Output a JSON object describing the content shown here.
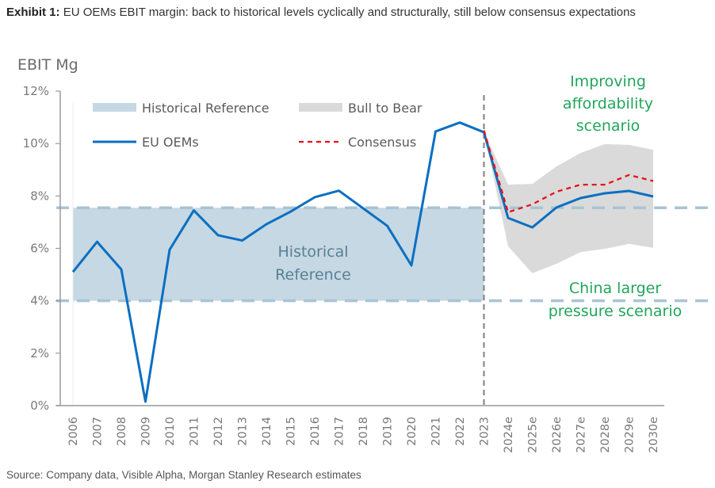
{
  "header": {
    "exhibit_label": "Exhibit 1:",
    "title": "EU OEMs EBIT margin: back to historical levels cyclically and structurally, still below consensus expectations"
  },
  "footer": {
    "source": "Source: Company data, Visible Alpha, Morgan Stanley Research estimates"
  },
  "colors": {
    "eu_oems": "#0a6fc2",
    "consensus": "#e8101b",
    "historical_band": "#c5d8e3",
    "bull_bear_band": "#dadada",
    "reference_lines": "#a9c4d4",
    "annotation_green": "#22a55b",
    "annotation_hist": "#5a7f96",
    "divider": "#7f7f7f"
  },
  "chart_data": {
    "type": "line",
    "title": "",
    "ylabel": "EBIT Mg",
    "xlabel": "",
    "ylim": [
      0,
      12
    ],
    "y_ticks": [
      0,
      2,
      4,
      6,
      8,
      10,
      12
    ],
    "y_tick_labels": [
      "0%",
      "2%",
      "4%",
      "6%",
      "8%",
      "10%",
      "12%"
    ],
    "categories": [
      "2006",
      "2007",
      "2008",
      "2009",
      "2010",
      "2011",
      "2012",
      "2013",
      "2014",
      "2015",
      "2016",
      "2017",
      "2018",
      "2019",
      "2020",
      "2021",
      "2022",
      "2023",
      "2024e",
      "2025e",
      "2026e",
      "2027e",
      "2028e",
      "2029e",
      "2030e"
    ],
    "series": [
      {
        "name": "EU OEMs",
        "style": "solid",
        "values": [
          5.1,
          6.25,
          5.2,
          0.15,
          5.95,
          7.45,
          6.5,
          6.3,
          6.92,
          7.4,
          7.95,
          8.2,
          7.53,
          6.86,
          5.35,
          10.46,
          10.8,
          10.43,
          7.16,
          6.8,
          7.56,
          7.92,
          8.1,
          8.19,
          7.98
        ]
      },
      {
        "name": "Consensus",
        "style": "dashed",
        "values": [
          null,
          null,
          null,
          null,
          null,
          null,
          null,
          null,
          null,
          null,
          null,
          null,
          null,
          null,
          null,
          null,
          null,
          10.5,
          7.38,
          7.68,
          8.16,
          8.43,
          8.43,
          8.8,
          8.57
        ]
      }
    ],
    "bands": [
      {
        "name": "Historical Reference",
        "from_category": "2006",
        "to_category": "2023",
        "lower": 4.0,
        "upper": 7.55
      },
      {
        "name": "Bull to Bear",
        "lower": [
          null,
          null,
          null,
          null,
          null,
          null,
          null,
          null,
          null,
          null,
          null,
          null,
          null,
          null,
          null,
          null,
          null,
          10.45,
          6.08,
          5.05,
          5.41,
          5.86,
          5.98,
          6.17,
          6.02
        ],
        "upper": [
          null,
          null,
          null,
          null,
          null,
          null,
          null,
          null,
          null,
          null,
          null,
          null,
          null,
          null,
          null,
          null,
          null,
          10.45,
          8.43,
          8.46,
          9.13,
          9.64,
          9.98,
          9.95,
          9.76
        ]
      }
    ],
    "reference_lines": [
      {
        "name": "historical-upper",
        "value": 7.55,
        "style": "dashed"
      },
      {
        "name": "historical-lower",
        "value": 4.0,
        "style": "dashed"
      }
    ],
    "divider_category": "2023",
    "legend": {
      "placement": "top-left",
      "entries": [
        {
          "label": "Historical Reference",
          "kind": "band"
        },
        {
          "label": "Bull to Bear",
          "kind": "band"
        },
        {
          "label": "EU OEMs",
          "kind": "line-solid"
        },
        {
          "label": "Consensus",
          "kind": "line-dashed"
        }
      ]
    },
    "annotations": {
      "historical": [
        "Historical",
        "Reference"
      ],
      "bull": [
        "Improving",
        "affordability",
        "scenario"
      ],
      "bear": [
        "China larger",
        "pressure scenario"
      ]
    },
    "grid": false
  }
}
